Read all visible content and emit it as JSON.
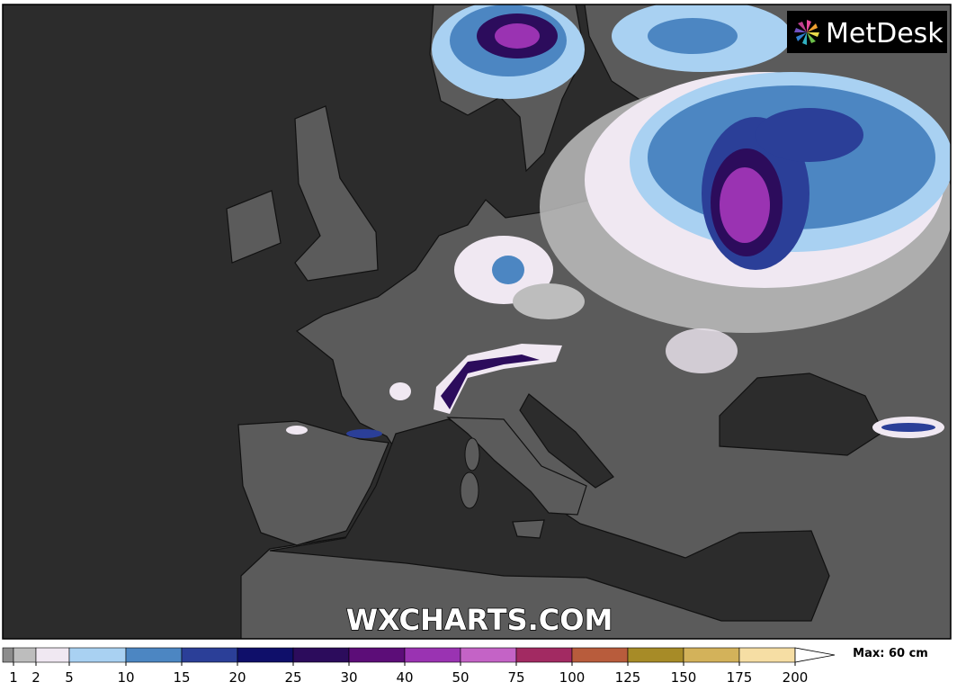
{
  "logo": "MetDesk",
  "watermark": "WXCHARTS.COM",
  "legend": {
    "levels": [
      1,
      2,
      5,
      10,
      15,
      20,
      25,
      30,
      40,
      50,
      75,
      100,
      125,
      150,
      175,
      200
    ],
    "colors": [
      "#8c8c8c",
      "#bdbdbd",
      "#f0e8f2",
      "#a9d1f2",
      "#4c86c2",
      "#2b3f98",
      "#0f0f6a",
      "#2c0c5c",
      "#5c0d78",
      "#9a33b2",
      "#c463c6",
      "#a22a62",
      "#b85c3c",
      "#a78b27",
      "#d3b25a",
      "#f6dea4",
      "#ffffff"
    ],
    "max_label": "Max: 60 cm"
  }
}
